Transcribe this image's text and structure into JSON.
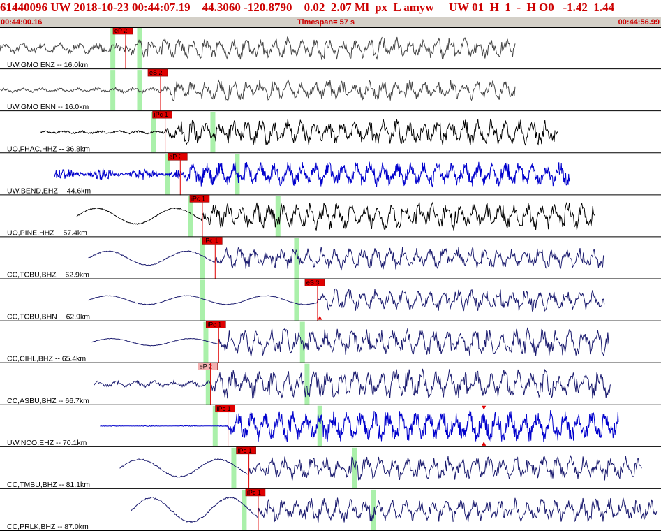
{
  "header": {
    "event_id": "61440096",
    "network": "UW",
    "datetime": "2018-10-23 00:44:07.19",
    "lat": "44.3060",
    "lon": "-120.8790",
    "depth": "0.02",
    "magnitude": "2.07 Ml",
    "flags": "px  L amyw",
    "right_info": "UW 01  H  1  -  H O0   -1.42  1.44",
    "start_time": "00:44:00.16",
    "end_time": "00:44:56.99",
    "timespan_label": "Timespan=  57 s"
  },
  "colors": {
    "title": "#cc0000",
    "subbar_bg": "#d4d0c8",
    "pick_box": "#e00000",
    "pick_box_weak": "#f4b0b0",
    "green_marker": "#aaf0aa",
    "trace_black": "#000000",
    "trace_gray": "#444444",
    "trace_blue": "#0000cc",
    "trace_navy": "#1a1a6e"
  },
  "traces": [
    {
      "label": "UW,GMO ENZ -- 16.0km",
      "color": "trace_gray",
      "start_s": 0.0,
      "end_s": 44.3,
      "onset_s": 10.8,
      "pre_amp": 0.25,
      "post_amp": 0.6,
      "noise": "mixed",
      "pick": {
        "text": "eP 2",
        "t_s": 10.8,
        "strength": "strong"
      },
      "green_s": [
        9.7,
        12.0
      ],
      "triangles": []
    },
    {
      "label": "UW,GMO ENN -- 16.0km",
      "color": "trace_gray",
      "start_s": 0.0,
      "end_s": 44.3,
      "onset_s": 13.8,
      "pre_amp": 0.12,
      "post_amp": 0.55,
      "noise": "mixed",
      "pick": {
        "text": "eS 2",
        "t_s": 13.8,
        "strength": "strong"
      },
      "green_s": [
        9.7,
        12.0
      ],
      "triangles": []
    },
    {
      "label": "UO,FHAC,HHZ -- 36.8km",
      "color": "trace_black",
      "start_s": 3.5,
      "end_s": 48.0,
      "onset_s": 14.2,
      "pre_amp": 0.08,
      "post_amp": 0.7,
      "noise": "mixed",
      "pick": {
        "text": "iPc 1",
        "t_s": 14.2,
        "strength": "strong"
      },
      "green_s": [
        13.2,
        18.3
      ],
      "triangles": []
    },
    {
      "label": "UW,BEND,EHZ -- 44.6km",
      "color": "trace_blue",
      "start_s": 4.7,
      "end_s": 49.0,
      "onset_s": 15.5,
      "pre_amp": 0.3,
      "post_amp": 0.65,
      "noise": "hf",
      "pick": {
        "text": "eP 2",
        "t_s": 15.5,
        "strength": "strong"
      },
      "green_s": [
        14.4,
        20.4
      ],
      "triangles": []
    },
    {
      "label": "UO,PINE,HHZ -- 57.4km",
      "color": "trace_black",
      "start_s": 6.6,
      "end_s": 51.2,
      "onset_s": 17.4,
      "pre_amp": 0.45,
      "post_amp": 0.75,
      "noise": "lf",
      "pick": {
        "text": "iPc 1",
        "t_s": 17.4,
        "strength": "strong"
      },
      "green_s": [
        16.4,
        23.9
      ],
      "triangles": []
    },
    {
      "label": "CC,TCBU,BHZ -- 62.9km",
      "color": "trace_navy",
      "start_s": 7.6,
      "end_s": 52.0,
      "onset_s": 18.5,
      "pre_amp": 0.4,
      "post_amp": 0.6,
      "noise": "lf",
      "pick": {
        "text": "iPc 1",
        "t_s": 18.5,
        "strength": "strong"
      },
      "green_s": [
        17.4,
        25.5
      ],
      "triangles": []
    },
    {
      "label": "CC,TCBU,BHN -- 62.9km",
      "color": "trace_navy",
      "start_s": 7.6,
      "end_s": 52.0,
      "onset_s": 27.3,
      "pre_amp": 0.25,
      "post_amp": 0.6,
      "noise": "lf",
      "pick": {
        "text": "eS 3",
        "t_s": 27.3,
        "strength": "strong"
      },
      "green_s": [
        17.4,
        25.5
      ],
      "triangles": [
        {
          "t_s": 27.5,
          "dir": "up"
        }
      ]
    },
    {
      "label": "CC,CIHL,BHZ -- 65.4km",
      "color": "trace_navy",
      "start_s": 7.9,
      "end_s": 52.4,
      "onset_s": 18.8,
      "pre_amp": 0.2,
      "post_amp": 0.75,
      "noise": "lf",
      "pick": {
        "text": "iPc 1",
        "t_s": 18.8,
        "strength": "strong"
      },
      "green_s": [
        17.7,
        26.0
      ],
      "triangles": []
    },
    {
      "label": "CC,ASBU,BHZ -- 66.7km",
      "color": "trace_navy",
      "start_s": 8.1,
      "end_s": 52.6,
      "onset_s": 18.1,
      "pre_amp": 0.15,
      "post_amp": 0.8,
      "noise": "mixed",
      "pick": {
        "text": "eP 2",
        "t_s": 18.1,
        "strength": "weak"
      },
      "green_s": [
        17.9,
        26.4
      ],
      "triangles": []
    },
    {
      "label": "UW,NCO,EHZ -- 70.1km",
      "color": "trace_blue",
      "start_s": 8.6,
      "end_s": 53.2,
      "onset_s": 19.6,
      "pre_amp": 0.02,
      "post_amp": 0.85,
      "noise": "hf",
      "pick": {
        "text": "iPc 1",
        "t_s": 19.6,
        "strength": "strong"
      },
      "green_s": [
        18.5,
        27.5
      ],
      "triangles": [
        {
          "t_s": 41.6,
          "dir": "down"
        },
        {
          "t_s": 41.6,
          "dir": "up"
        }
      ]
    },
    {
      "label": "CC,TMBU,BHZ -- 81.1km",
      "color": "trace_navy",
      "start_s": 10.3,
      "end_s": 55.2,
      "onset_s": 21.4,
      "pre_amp": 0.5,
      "post_amp": 0.65,
      "noise": "lf",
      "pick": {
        "text": "iPc 1",
        "t_s": 21.4,
        "strength": "strong"
      },
      "green_s": [
        20.1,
        30.5
      ],
      "triangles": []
    },
    {
      "label": "CC,PRLK,BHZ -- 87.0km",
      "color": "trace_navy",
      "start_s": 11.3,
      "end_s": 56.5,
      "onset_s": 22.2,
      "pre_amp": 0.7,
      "post_amp": 0.65,
      "noise": "lf",
      "pick": {
        "text": "iPc 1",
        "t_s": 22.2,
        "strength": "strong"
      },
      "green_s": [
        21.0,
        32.1
      ],
      "triangles": []
    }
  ],
  "axis": {
    "t_min_s": 0.0,
    "t_max_s": 56.83
  }
}
